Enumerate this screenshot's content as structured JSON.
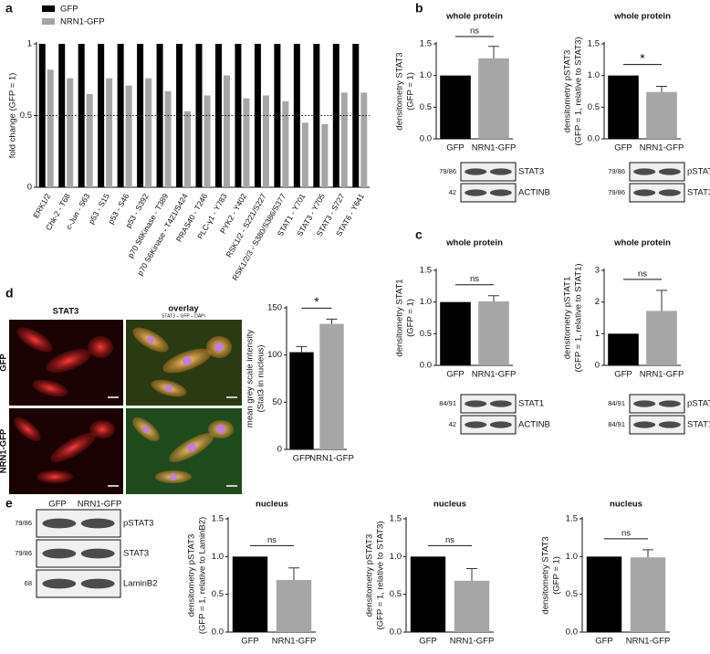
{
  "chart_data": [
    {
      "type": "bar",
      "ylabel": [
        "fold change (GFP = 1)"
      ],
      "categories": [
        "ERK1/2",
        "Chk-2 - T68",
        "c-Jun - S63",
        "p53 - S15",
        "p53 - S46",
        "p53 - S392",
        "p70 S6Kinase - T389",
        "p70 S6Kinase - T421/S424",
        "PRAS40 - T246",
        "PLC-γ1 - Y783",
        "PYK2 - Y402",
        "RSK1/2 - S221/S227",
        "RSK1/2/3 - S380/S386/S377",
        "STAT1 - Y701",
        "STAT3 - Y705",
        "STAT3 - S727",
        "STAT6 - Y641"
      ],
      "series": [
        {
          "name": "GFP",
          "color": "#000000",
          "values": [
            1,
            1,
            1,
            1,
            1,
            1,
            1,
            1,
            1,
            1,
            1,
            1,
            1,
            1,
            1,
            1,
            1
          ]
        },
        {
          "name": "NRN1-GFP",
          "color": "#a6a6a6",
          "values": [
            0.82,
            0.76,
            0.65,
            0.76,
            0.71,
            0.76,
            0.67,
            0.53,
            0.64,
            0.78,
            0.62,
            0.64,
            0.6,
            0.45,
            0.44,
            0.66,
            0.66
          ]
        }
      ],
      "reference_line": 0.5,
      "ylim": [
        0,
        1
      ],
      "yticks": [
        0,
        0.5,
        1
      ]
    },
    {
      "type": "bar",
      "title": "whole protein",
      "ylabel": [
        "densitometry STAT3",
        "(GFP = 1)"
      ],
      "categories": [
        "GFP",
        "NRN1-GFP"
      ],
      "values": [
        1,
        1.27
      ],
      "errors": [
        null,
        0.19
      ],
      "colors": [
        "#000000",
        "#a6a6a6"
      ],
      "significance": "ns",
      "ylim": [
        0,
        1.5
      ],
      "yticks": [
        {
          "value": 0,
          "label": "0.0"
        },
        0.5,
        {
          "value": 1,
          "label": "1.0"
        },
        1.5
      ]
    },
    {
      "type": "bar",
      "title": "whole protein",
      "ylabel": [
        "densitometry pSTAT3",
        "(GFP = 1, relative to STAT3)"
      ],
      "categories": [
        "GFP",
        "NRN1-GFP"
      ],
      "values": [
        1,
        0.74
      ],
      "errors": [
        null,
        0.09
      ],
      "colors": [
        "#000000",
        "#a6a6a6"
      ],
      "significance": "*",
      "ylim": [
        0,
        1.5
      ],
      "yticks": [
        {
          "value": 0,
          "label": "0.0"
        },
        0.5,
        {
          "value": 1,
          "label": "1.0"
        },
        1.5
      ]
    },
    {
      "type": "bar",
      "title": "whole protein",
      "ylabel": [
        "densitometry STAT1",
        "(GFP = 1)"
      ],
      "categories": [
        "GFP",
        "NRN1-GFP"
      ],
      "values": [
        1,
        1.01
      ],
      "errors": [
        null,
        0.09
      ],
      "colors": [
        "#000000",
        "#a6a6a6"
      ],
      "significance": "ns",
      "ylim": [
        0,
        1.5
      ],
      "yticks": [
        {
          "value": 0,
          "label": "0.0"
        },
        0.5,
        {
          "value": 1,
          "label": "1.0"
        },
        1.5
      ]
    },
    {
      "type": "bar",
      "title": "whole protein",
      "ylabel": [
        "densitometry pSTAT1",
        "(GFP = 1, relative to STAT1)"
      ],
      "categories": [
        "GFP",
        "NRN1-GFP"
      ],
      "values": [
        1,
        1.72
      ],
      "errors": [
        null,
        0.65
      ],
      "colors": [
        "#000000",
        "#a6a6a6"
      ],
      "significance": "ns",
      "ylim": [
        0,
        3
      ],
      "yticks": [
        0,
        1,
        2,
        3
      ]
    },
    {
      "type": "bar",
      "ylabel": [
        "mean grey scale intensity",
        "(Stat3 in nucleus)"
      ],
      "categories": [
        "GFP",
        "NRN1-GFP"
      ],
      "values": [
        103,
        133
      ],
      "errors": [
        6,
        5
      ],
      "colors": [
        "#000000",
        "#a6a6a6"
      ],
      "significance": "*",
      "ylim": [
        0,
        150
      ],
      "yticks": [
        0,
        50,
        100,
        150
      ]
    },
    {
      "type": "bar",
      "title": "nucleus",
      "ylabel": [
        "densitometry pSTAT3",
        "(GFP = 1, relative to LaminB2)"
      ],
      "categories": [
        "GFP",
        "NRN1-GFP"
      ],
      "values": [
        1,
        0.69
      ],
      "errors": [
        null,
        0.16
      ],
      "colors": [
        "#000000",
        "#a6a6a6"
      ],
      "significance": "ns",
      "ylim": [
        0,
        1.5
      ],
      "yticks": [
        {
          "value": 0,
          "label": "0.0"
        },
        0.5,
        {
          "value": 1,
          "label": "1.0"
        },
        1.5
      ]
    },
    {
      "type": "bar",
      "title": "nucleus",
      "ylabel": [
        "densitometry pSTAT3",
        "(GFP = 1, relative to STAT3)"
      ],
      "categories": [
        "GFP",
        "NRN1-GFP"
      ],
      "values": [
        1,
        0.68
      ],
      "errors": [
        null,
        0.16
      ],
      "colors": [
        "#000000",
        "#a6a6a6"
      ],
      "significance": "ns",
      "ylim": [
        0,
        1.5
      ],
      "yticks": [
        {
          "value": 0,
          "label": "0.0"
        },
        0.5,
        {
          "value": 1,
          "label": "1.0"
        },
        1.5
      ]
    },
    {
      "type": "bar",
      "title": "nucleus",
      "ylabel": [
        "densitometry STAT3",
        "(GFP = 1)"
      ],
      "categories": [
        "GFP",
        "NRN1-GFP"
      ],
      "values": [
        1,
        0.99
      ],
      "errors": [
        null,
        0.1
      ],
      "colors": [
        "#000000",
        "#a6a6a6"
      ],
      "significance": "ns",
      "ylim": [
        0,
        1.5
      ],
      "yticks": [
        {
          "value": 0,
          "label": "0.0"
        },
        0.5,
        {
          "value": 1,
          "label": "1.0"
        },
        1.5
      ]
    }
  ],
  "panel_letters": [
    "a",
    "b",
    "c",
    "d",
    "e"
  ],
  "blots": [
    {
      "rows": [
        {
          "mw": "79/86",
          "label": "STAT3"
        },
        {
          "mw": "42",
          "label": "ACTINB"
        }
      ]
    },
    {
      "rows": [
        {
          "mw": "79/86",
          "label": "pSTAT3"
        },
        {
          "mw": "79/86",
          "label": "STAT3"
        }
      ]
    },
    {
      "rows": [
        {
          "mw": "84/91",
          "label": "STAT1"
        },
        {
          "mw": "42",
          "label": "ACTINB"
        }
      ]
    },
    {
      "rows": [
        {
          "mw": "84/91",
          "label": "pSTAT1"
        },
        {
          "mw": "84/91",
          "label": "STAT1"
        }
      ]
    },
    {
      "lanes": [
        "GFP",
        "NRN1-GFP"
      ],
      "rows": [
        {
          "mw": "79/86",
          "label": "pSTAT3"
        },
        {
          "mw": "79/86",
          "label": "STAT3"
        },
        {
          "mw": "68",
          "label": "LaminB2"
        }
      ]
    }
  ],
  "micrograph": {
    "columns": [
      "STAT3",
      "overlay"
    ],
    "overlay_subtitle": "STAT3 – GFP – DAPI",
    "rows": [
      "GFP",
      "NRN1-GFP"
    ]
  }
}
